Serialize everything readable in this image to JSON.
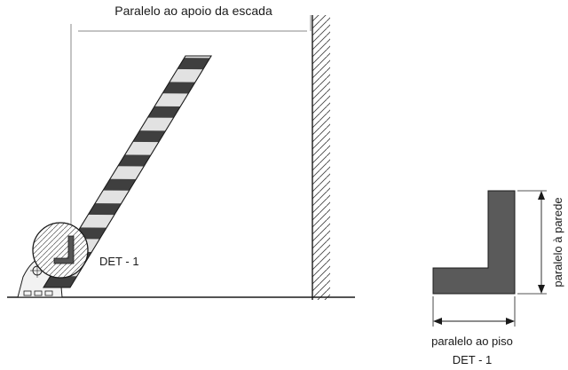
{
  "labels": {
    "top": "Paralelo ao apoio da escada",
    "detail_callout": "DET - 1",
    "wall_side": "paralelo à parede",
    "floor_side": "paralelo ao piso",
    "detail_caption": "DET - 1"
  },
  "colors": {
    "profile_fill": "#5a5a5a",
    "stripe_dark": "#3f3f3f",
    "stripe_light": "#e2e2e2",
    "line": "#1a1a1a",
    "guide_line": "#8a8a8a"
  }
}
